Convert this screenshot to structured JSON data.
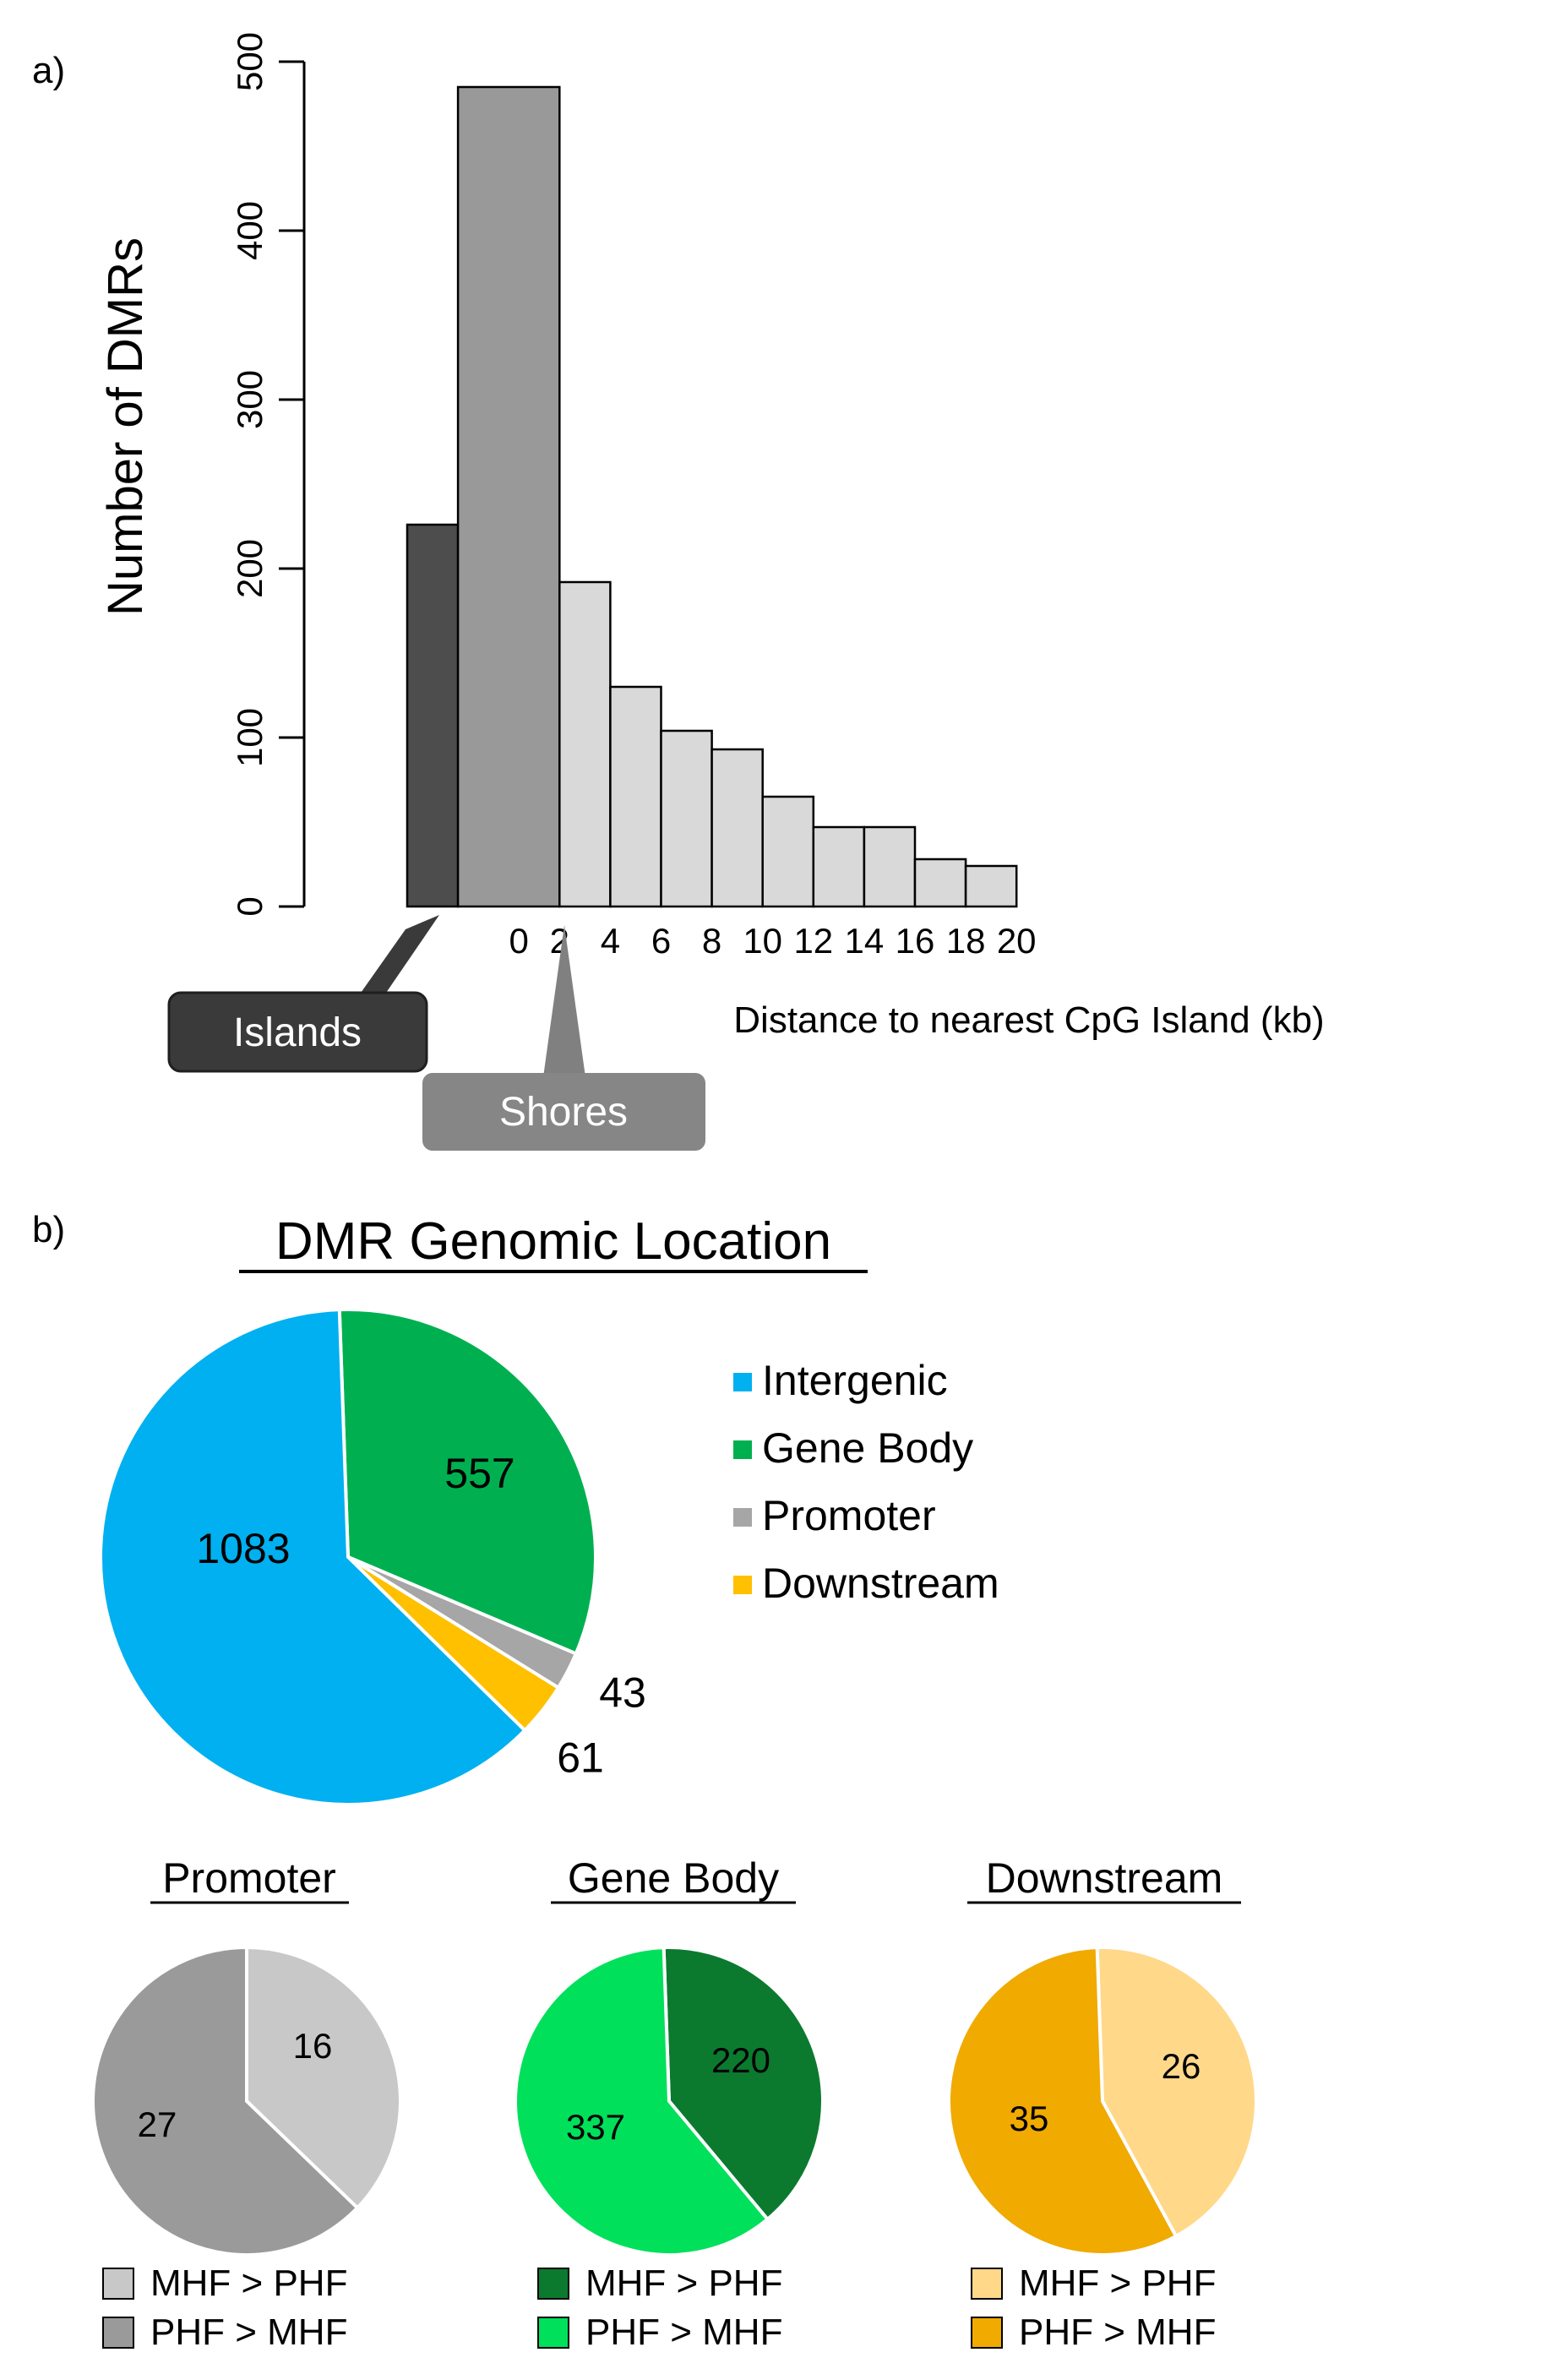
{
  "chart_data": [
    {
      "panel_label": "a)",
      "type": "bar",
      "bins_kb": [
        [
          -4,
          -2
        ],
        [
          -2,
          2
        ],
        [
          2,
          4
        ],
        [
          4,
          6
        ],
        [
          6,
          8
        ],
        [
          8,
          10
        ],
        [
          10,
          12
        ],
        [
          12,
          14
        ],
        [
          14,
          16
        ],
        [
          16,
          18
        ],
        [
          18,
          20
        ]
      ],
      "values": [
        226,
        485,
        192,
        130,
        104,
        93,
        65,
        47,
        47,
        28,
        24
      ],
      "bar_groups": [
        "islands",
        "shores",
        "other",
        "other",
        "other",
        "other",
        "other",
        "other",
        "other",
        "other",
        "other"
      ],
      "xlabel": "Distance to nearest CpG Island (kb)",
      "ylabel": "Number of DMRs",
      "x_tick_labels": [
        "0",
        "2",
        "4",
        "6",
        "8",
        "10",
        "12",
        "14",
        "16",
        "18",
        "20"
      ],
      "x_tick_values": [
        0,
        2,
        4,
        6,
        8,
        10,
        12,
        14,
        16,
        18,
        20
      ],
      "y_ticks": [
        0,
        100,
        200,
        300,
        400,
        500
      ],
      "ylim": [
        0,
        500
      ],
      "callouts": {
        "islands": "Islands",
        "shores": "Shores"
      },
      "colors": {
        "islands": "#4d4d4d",
        "shores": "#999999",
        "other": "#d9d9d9",
        "axis": "#000000"
      }
    },
    {
      "panel_label": "b)",
      "type": "pie",
      "title": "DMR Genomic Location",
      "slices": [
        {
          "label": "Gene Body",
          "value": 557,
          "color": "#00b050"
        },
        {
          "label": "Promoter",
          "value": 43,
          "color": "#a6a6a6"
        },
        {
          "label": "Downstream",
          "value": 61,
          "color": "#ffc000"
        },
        {
          "label": "Intergenic",
          "value": 1083,
          "color": "#00b0f0"
        }
      ],
      "legend": [
        "Intergenic",
        "Gene Body",
        "Promoter",
        "Downstream"
      ]
    },
    {
      "type": "pie",
      "title": "Promoter",
      "slices": [
        {
          "label": "MHF > PHF",
          "value": 16,
          "color": "#c8c8c8"
        },
        {
          "label": "PHF > MHF",
          "value": 27,
          "color": "#9a9a9a"
        }
      ]
    },
    {
      "type": "pie",
      "title": "Gene Body",
      "slices": [
        {
          "label": "MHF > PHF",
          "value": 220,
          "color": "#0b7a2e"
        },
        {
          "label": "PHF > MHF",
          "value": 337,
          "color": "#00e05a"
        }
      ]
    },
    {
      "type": "pie",
      "title": "Downstream",
      "slices": [
        {
          "label": "MHF > PHF",
          "value": 26,
          "color": "#ffd88a"
        },
        {
          "label": "PHF > MHF",
          "value": 35,
          "color": "#f0aa00"
        }
      ]
    }
  ]
}
